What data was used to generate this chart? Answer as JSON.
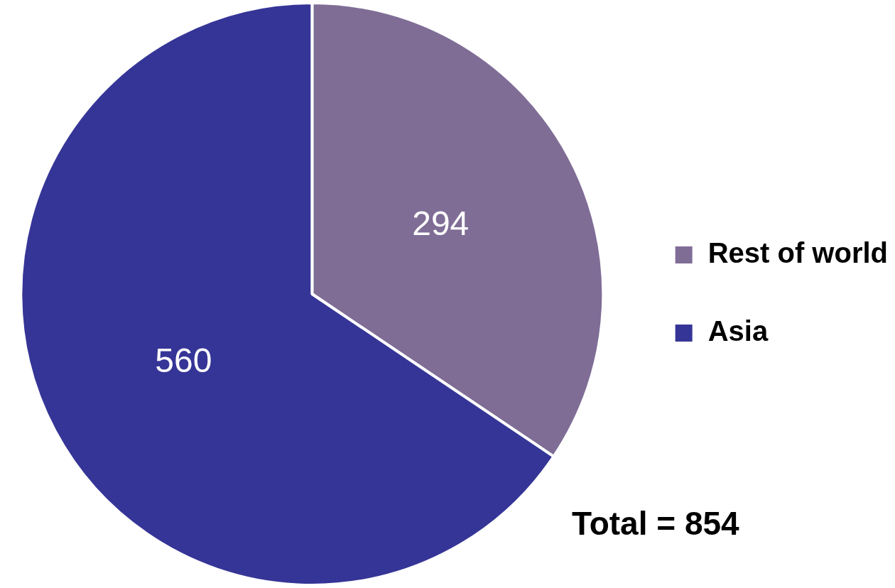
{
  "chart_data": {
    "type": "pie",
    "categories": [
      "Rest of world",
      "Asia"
    ],
    "values": [
      294,
      560
    ],
    "colors": [
      "#7f6d96",
      "#353597"
    ],
    "data_labels": true,
    "legend": "right",
    "annotations": [
      "Total = 854"
    ]
  }
}
